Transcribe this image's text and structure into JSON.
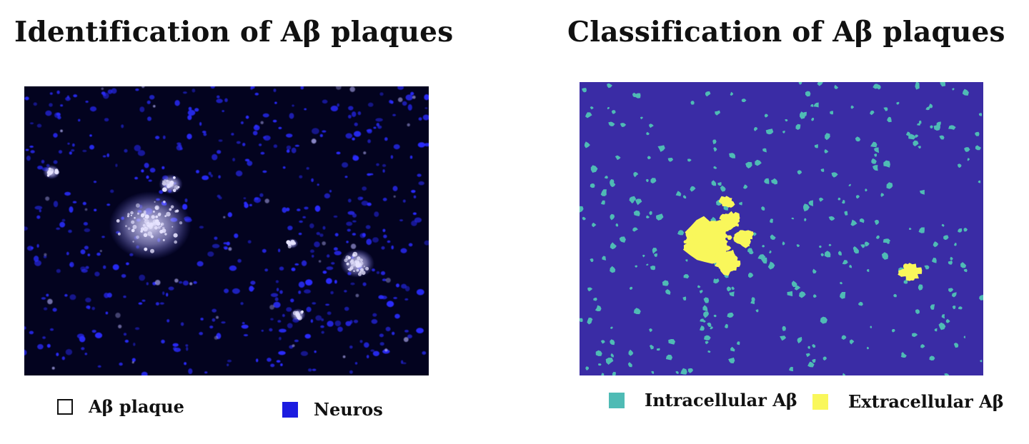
{
  "titles": {
    "identification": "Identification of Aβ plaques",
    "classification": "Classification of Aβ plaques"
  },
  "legend_left": [
    {
      "label": "Aβ plaque",
      "color": "#ffffff",
      "icon": "hollow-square-icon"
    },
    {
      "label": "Neuros",
      "color": "#1c1ce0",
      "icon": "filled-square-icon"
    }
  ],
  "legend_right": [
    {
      "label": "Intracellular Aβ",
      "color": "#4fbbb5",
      "icon": "filled-square-icon"
    },
    {
      "label": "Extracellular Aβ",
      "color": "#f9f75b",
      "icon": "filled-square-icon"
    }
  ],
  "colors": {
    "micrograph_background": "#03031f",
    "neuron_blue": "#2a2cff",
    "plaque_white": "#e6e3ff",
    "segmentation_background": "#3a2ca5",
    "intracellular": "#4fbbb5",
    "extracellular": "#f9f75b"
  }
}
